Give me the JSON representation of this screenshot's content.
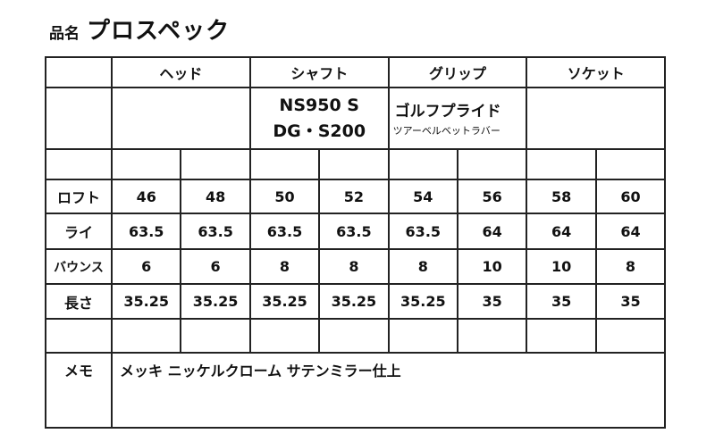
{
  "header": {
    "label": "品名",
    "product_name": "プロスペック"
  },
  "table": {
    "columns": [
      "ヘッド",
      "シャフト",
      "グリップ",
      "ソケット"
    ],
    "shaft": [
      "NS950 S",
      "DG・S200"
    ],
    "grip": [
      "ゴルフプライド",
      "ツアーベルベットラバー"
    ],
    "rows": [
      {
        "label": "ロフト",
        "values": [
          "46",
          "48",
          "50",
          "52",
          "54",
          "56",
          "58",
          "60"
        ]
      },
      {
        "label": "ライ",
        "values": [
          "63.5",
          "63.5",
          "63.5",
          "63.5",
          "63.5",
          "64",
          "64",
          "64"
        ]
      },
      {
        "label": "バウンス",
        "values": [
          "6",
          "6",
          "8",
          "8",
          "8",
          "10",
          "10",
          "8"
        ]
      },
      {
        "label": "長さ",
        "values": [
          "35.25",
          "35.25",
          "35.25",
          "35.25",
          "35.25",
          "35",
          "35",
          "35"
        ]
      }
    ],
    "memo_label": "メモ",
    "memo": "メッキ ニッケルクローム サテンミラー仕上"
  }
}
